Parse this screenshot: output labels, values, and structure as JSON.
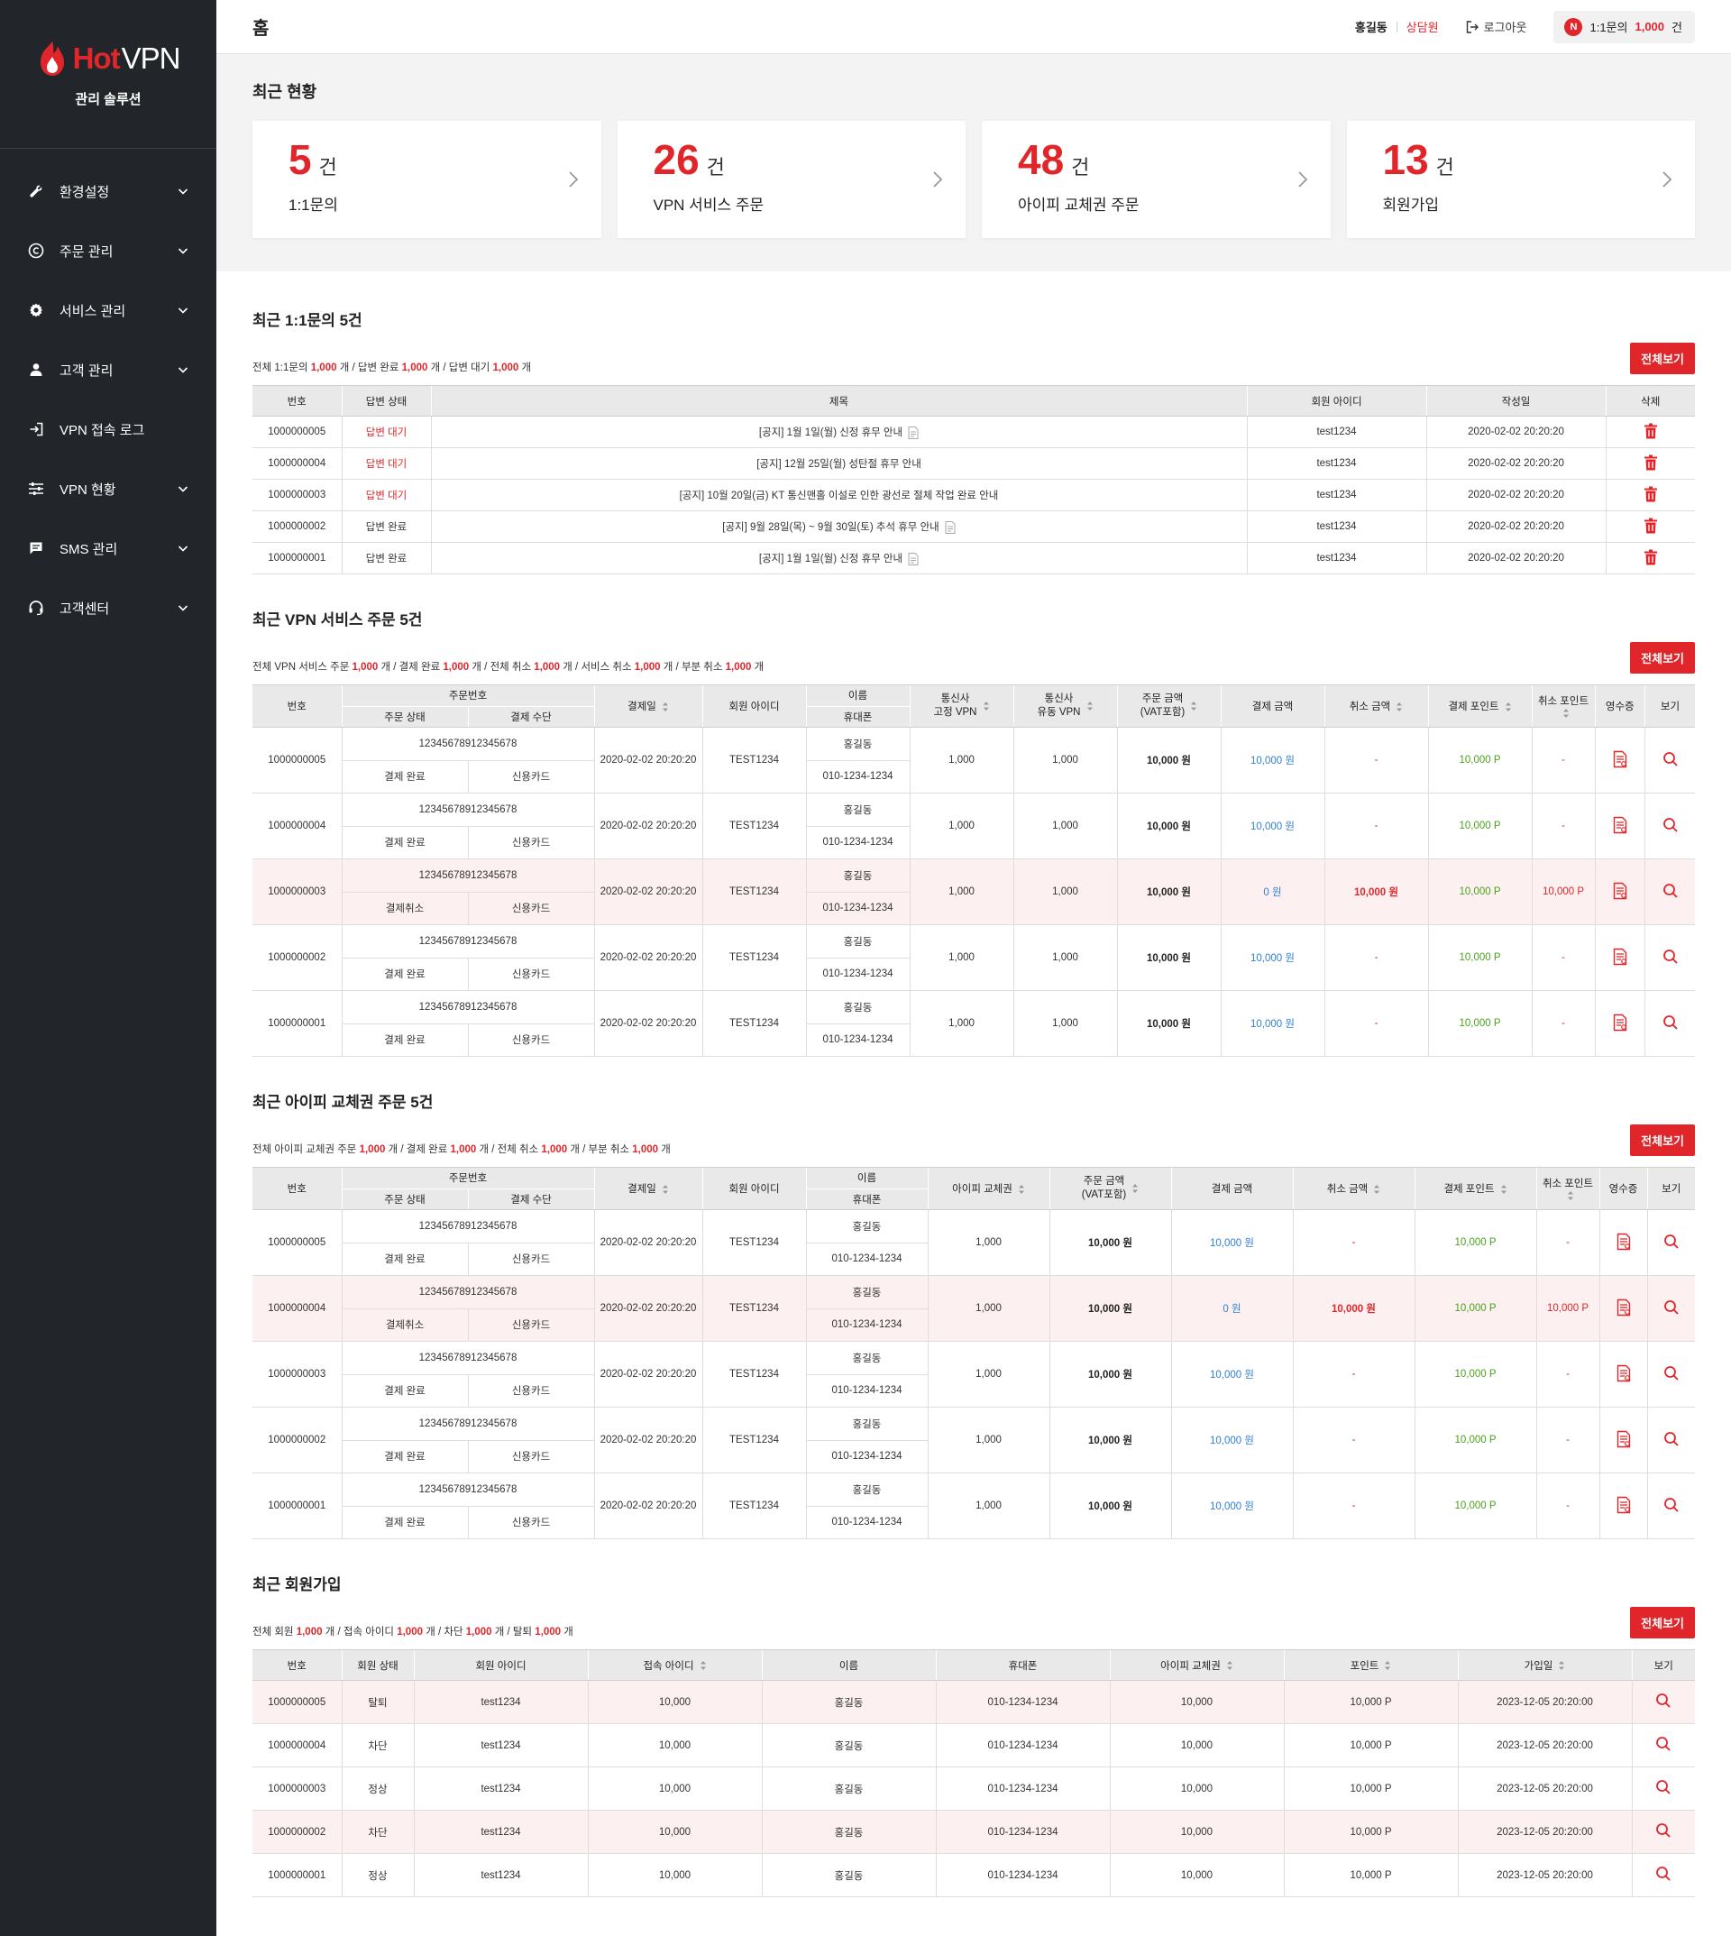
{
  "brand": {
    "hot": "Hot",
    "vpn": "VPN",
    "subtitle": "관리 솔루션"
  },
  "sidebar": {
    "items": [
      {
        "label": "환경설정",
        "icon": "wrench-icon",
        "has_sub": true
      },
      {
        "label": "주문 관리",
        "icon": "copyright-icon",
        "has_sub": true
      },
      {
        "label": "서비스 관리",
        "icon": "gear-icon",
        "has_sub": true
      },
      {
        "label": "고객 관리",
        "icon": "user-icon",
        "has_sub": true
      },
      {
        "label": "VPN 접속 로그",
        "icon": "login-icon",
        "has_sub": false
      },
      {
        "label": "VPN 현황",
        "icon": "sliders-icon",
        "has_sub": true
      },
      {
        "label": "SMS 관리",
        "icon": "chat-icon",
        "has_sub": true
      },
      {
        "label": "고객센터",
        "icon": "headset-icon",
        "has_sub": true
      }
    ]
  },
  "header": {
    "title": "홈",
    "user_name": "홍길동",
    "user_role": "상담원",
    "logout": "로그아웃",
    "notify_badge": "N",
    "notify_label": "1:1문의",
    "notify_count": "1,000",
    "notify_unit": "건"
  },
  "summary": {
    "title": "최근 현황",
    "cards": [
      {
        "num": "5",
        "unit": "건",
        "label": "1:1문의"
      },
      {
        "num": "26",
        "unit": "건",
        "label": "VPN 서비스 주문"
      },
      {
        "num": "48",
        "unit": "건",
        "label": "아이피 교체권 주문"
      },
      {
        "num": "13",
        "unit": "건",
        "label": "회원가입"
      }
    ]
  },
  "view_all": "전체보기",
  "inquiry": {
    "title": "최근 1:1문의 5건",
    "stats": [
      {
        "label": "전체 1:1문의",
        "value": "1,000",
        "unit": "개"
      },
      {
        "label": "답변 완료",
        "value": "1,000",
        "unit": "개"
      },
      {
        "label": "답변 대기",
        "value": "1,000",
        "unit": "개"
      }
    ],
    "headers": [
      "번호",
      "답변 상태",
      "제목",
      "회원 아이디",
      "작성일",
      "삭제"
    ],
    "rows": [
      {
        "no": "1000000005",
        "status": "답변 대기",
        "pending": true,
        "title": "[공지] 1월 1일(월) 신정 휴무 안내",
        "attach": true,
        "user": "test1234",
        "date": "2020-02-02 20:20:20"
      },
      {
        "no": "1000000004",
        "status": "답변 대기",
        "pending": true,
        "title": "[공지] 12월 25일(월) 성탄절 휴무 안내",
        "attach": false,
        "user": "test1234",
        "date": "2020-02-02 20:20:20"
      },
      {
        "no": "1000000003",
        "status": "답변 대기",
        "pending": true,
        "title": "[공지] 10월 20일(금) KT 통신맨홀 이설로 인한 광선로 절체 작업 완료 안내",
        "attach": false,
        "user": "test1234",
        "date": "2020-02-02 20:20:20"
      },
      {
        "no": "1000000002",
        "status": "답변 완료",
        "pending": false,
        "title": "[공지] 9월 28일(목) ~ 9월 30일(토) 추석 휴무 안내",
        "attach": true,
        "user": "test1234",
        "date": "2020-02-02 20:20:20"
      },
      {
        "no": "1000000001",
        "status": "답변 완료",
        "pending": false,
        "title": "[공지] 1월 1일(월) 신정 휴무 안내",
        "attach": true,
        "user": "test1234",
        "date": "2020-02-02 20:20:20"
      }
    ]
  },
  "vpn_orders": {
    "title": "최근 VPN 서비스 주문 5건",
    "stats": [
      {
        "label": "전체 VPN 서비스 주문",
        "value": "1,000",
        "unit": "개"
      },
      {
        "label": "결제 완료",
        "value": "1,000",
        "unit": "개"
      },
      {
        "label": "전체 취소",
        "value": "1,000",
        "unit": "개"
      },
      {
        "label": "서비스 취소",
        "value": "1,000",
        "unit": "개"
      },
      {
        "label": "부분 취소",
        "value": "1,000",
        "unit": "개"
      }
    ],
    "headers": {
      "no": "번호",
      "order_no": "주문번호",
      "order_status": "주문 상태",
      "pay_method": "결제 수단",
      "pay_date": "결제일",
      "user_id": "회원 아이디",
      "name": "이름",
      "phone": "휴대폰",
      "fixed_vpn_1": "통신사",
      "fixed_vpn_2": "고정 VPN",
      "float_vpn_1": "통신사",
      "float_vpn_2": "유동 VPN",
      "amount_1": "주문 금액",
      "amount_2": "(VAT포함)",
      "paid": "결제 금액",
      "cancel_amt": "취소 금액",
      "pay_point": "결제 포인트",
      "cancel_point": "취소 포인트",
      "receipt": "영수증",
      "view": "보기"
    },
    "rows": [
      {
        "no": "1000000005",
        "order_no": "12345678912345678",
        "status": "결제 완료",
        "method": "신용카드",
        "date": "2020-02-02 20:20:20",
        "user": "TEST1234",
        "name": "홍길동",
        "phone": "010-1234-1234",
        "fixed": "1,000",
        "float": "1,000",
        "amount": "10,000 원",
        "paid": "10,000 원",
        "cancel_amt": "-",
        "pay_point": "10,000 P",
        "cancel_point": "-",
        "cancelled": false
      },
      {
        "no": "1000000004",
        "order_no": "12345678912345678",
        "status": "결제 완료",
        "method": "신용카드",
        "date": "2020-02-02 20:20:20",
        "user": "TEST1234",
        "name": "홍길동",
        "phone": "010-1234-1234",
        "fixed": "1,000",
        "float": "1,000",
        "amount": "10,000 원",
        "paid": "10,000 원",
        "cancel_amt": "-",
        "pay_point": "10,000 P",
        "cancel_point": "-",
        "cancelled": false
      },
      {
        "no": "1000000003",
        "order_no": "12345678912345678",
        "status": "결제취소",
        "method": "신용카드",
        "date": "2020-02-02 20:20:20",
        "user": "TEST1234",
        "name": "홍길동",
        "phone": "010-1234-1234",
        "fixed": "1,000",
        "float": "1,000",
        "amount": "10,000 원",
        "paid": "0 원",
        "cancel_amt": "10,000 원",
        "pay_point": "10,000 P",
        "cancel_point": "10,000 P",
        "cancelled": true
      },
      {
        "no": "1000000002",
        "order_no": "12345678912345678",
        "status": "결제 완료",
        "method": "신용카드",
        "date": "2020-02-02 20:20:20",
        "user": "TEST1234",
        "name": "홍길동",
        "phone": "010-1234-1234",
        "fixed": "1,000",
        "float": "1,000",
        "amount": "10,000 원",
        "paid": "10,000 원",
        "cancel_amt": "-",
        "pay_point": "10,000 P",
        "cancel_point": "-",
        "cancelled": false
      },
      {
        "no": "1000000001",
        "order_no": "12345678912345678",
        "status": "결제 완료",
        "method": "신용카드",
        "date": "2020-02-02 20:20:20",
        "user": "TEST1234",
        "name": "홍길동",
        "phone": "010-1234-1234",
        "fixed": "1,000",
        "float": "1,000",
        "amount": "10,000 원",
        "paid": "10,000 원",
        "cancel_amt": "-",
        "pay_point": "10,000 P",
        "cancel_point": "-",
        "cancelled": false
      }
    ]
  },
  "ip_orders": {
    "title": "최근 아이피 교체권 주문 5건",
    "stats": [
      {
        "label": "전체 아이피 교체권 주문",
        "value": "1,000",
        "unit": "개"
      },
      {
        "label": "결제 완료",
        "value": "1,000",
        "unit": "개"
      },
      {
        "label": "전체 취소",
        "value": "1,000",
        "unit": "개"
      },
      {
        "label": "부분 취소",
        "value": "1,000",
        "unit": "개"
      }
    ],
    "headers": {
      "no": "번호",
      "order_no": "주문번호",
      "order_status": "주문 상태",
      "pay_method": "결제 수단",
      "pay_date": "결제일",
      "user_id": "회원 아이디",
      "name": "이름",
      "phone": "휴대폰",
      "ip_ticket": "아이피 교체권",
      "amount_1": "주문 금액",
      "amount_2": "(VAT포함)",
      "paid": "결제 금액",
      "cancel_amt": "취소 금액",
      "pay_point": "결제 포인트",
      "cancel_point": "취소 포인트",
      "receipt": "영수증",
      "view": "보기"
    },
    "rows": [
      {
        "no": "1000000005",
        "order_no": "12345678912345678",
        "status": "결제 완료",
        "method": "신용카드",
        "date": "2020-02-02 20:20:20",
        "user": "TEST1234",
        "name": "홍길동",
        "phone": "010-1234-1234",
        "ticket": "1,000",
        "amount": "10,000 원",
        "paid": "10,000 원",
        "cancel_amt": "-",
        "pay_point": "10,000 P",
        "cancel_point": "-",
        "cancelled": false
      },
      {
        "no": "1000000004",
        "order_no": "12345678912345678",
        "status": "결제취소",
        "method": "신용카드",
        "date": "2020-02-02 20:20:20",
        "user": "TEST1234",
        "name": "홍길동",
        "phone": "010-1234-1234",
        "ticket": "1,000",
        "amount": "10,000 원",
        "paid": "0 원",
        "cancel_amt": "10,000 원",
        "pay_point": "10,000 P",
        "cancel_point": "10,000 P",
        "cancelled": true
      },
      {
        "no": "1000000003",
        "order_no": "12345678912345678",
        "status": "결제 완료",
        "method": "신용카드",
        "date": "2020-02-02 20:20:20",
        "user": "TEST1234",
        "name": "홍길동",
        "phone": "010-1234-1234",
        "ticket": "1,000",
        "amount": "10,000 원",
        "paid": "10,000 원",
        "cancel_amt": "-",
        "pay_point": "10,000 P",
        "cancel_point": "-",
        "cancelled": false
      },
      {
        "no": "1000000002",
        "order_no": "12345678912345678",
        "status": "결제 완료",
        "method": "신용카드",
        "date": "2020-02-02 20:20:20",
        "user": "TEST1234",
        "name": "홍길동",
        "phone": "010-1234-1234",
        "ticket": "1,000",
        "amount": "10,000 원",
        "paid": "10,000 원",
        "cancel_amt": "-",
        "pay_point": "10,000 P",
        "cancel_point": "-",
        "cancelled": false
      },
      {
        "no": "1000000001",
        "order_no": "12345678912345678",
        "status": "결제 완료",
        "method": "신용카드",
        "date": "2020-02-02 20:20:20",
        "user": "TEST1234",
        "name": "홍길동",
        "phone": "010-1234-1234",
        "ticket": "1,000",
        "amount": "10,000 원",
        "paid": "10,000 원",
        "cancel_amt": "-",
        "pay_point": "10,000 P",
        "cancel_point": "-",
        "cancelled": false
      }
    ]
  },
  "members": {
    "title": "최근 회원가입",
    "stats": [
      {
        "label": "전체 회원",
        "value": "1,000",
        "unit": "개"
      },
      {
        "label": "접속 아이디",
        "value": "1,000",
        "unit": "개"
      },
      {
        "label": "차단",
        "value": "1,000",
        "unit": "개"
      },
      {
        "label": "탈퇴",
        "value": "1,000",
        "unit": "개"
      }
    ],
    "headers": [
      "번호",
      "회원 상태",
      "회원 아이디",
      "접속 아이디",
      "이름",
      "휴대폰",
      "아이피 교체권",
      "포인트",
      "가입일",
      "보기"
    ],
    "rows": [
      {
        "no": "1000000005",
        "status": "탈퇴",
        "user": "test1234",
        "conn": "10,000",
        "name": "홍길동",
        "phone": "010-1234-1234",
        "ticket": "10,000",
        "point": "10,000 P",
        "date": "2023-12-05 20:20:00",
        "highlight": true
      },
      {
        "no": "1000000004",
        "status": "차단",
        "user": "test1234",
        "conn": "10,000",
        "name": "홍길동",
        "phone": "010-1234-1234",
        "ticket": "10,000",
        "point": "10,000 P",
        "date": "2023-12-05 20:20:00",
        "highlight": false
      },
      {
        "no": "1000000003",
        "status": "정상",
        "user": "test1234",
        "conn": "10,000",
        "name": "홍길동",
        "phone": "010-1234-1234",
        "ticket": "10,000",
        "point": "10,000 P",
        "date": "2023-12-05 20:20:00",
        "highlight": false
      },
      {
        "no": "1000000002",
        "status": "차단",
        "user": "test1234",
        "conn": "10,000",
        "name": "홍길동",
        "phone": "010-1234-1234",
        "ticket": "10,000",
        "point": "10,000 P",
        "date": "2023-12-05 20:20:00",
        "highlight": true
      },
      {
        "no": "1000000001",
        "status": "정상",
        "user": "test1234",
        "conn": "10,000",
        "name": "홍길동",
        "phone": "010-1234-1234",
        "ticket": "10,000",
        "point": "10,000 P",
        "date": "2023-12-05 20:20:00",
        "highlight": false
      }
    ]
  },
  "colors": {
    "accent": "#e0262a",
    "sidebar": "#22262b",
    "blue": "#2f7fd6",
    "green": "#4aa21c",
    "highlight_row": "#fdf0f0"
  }
}
